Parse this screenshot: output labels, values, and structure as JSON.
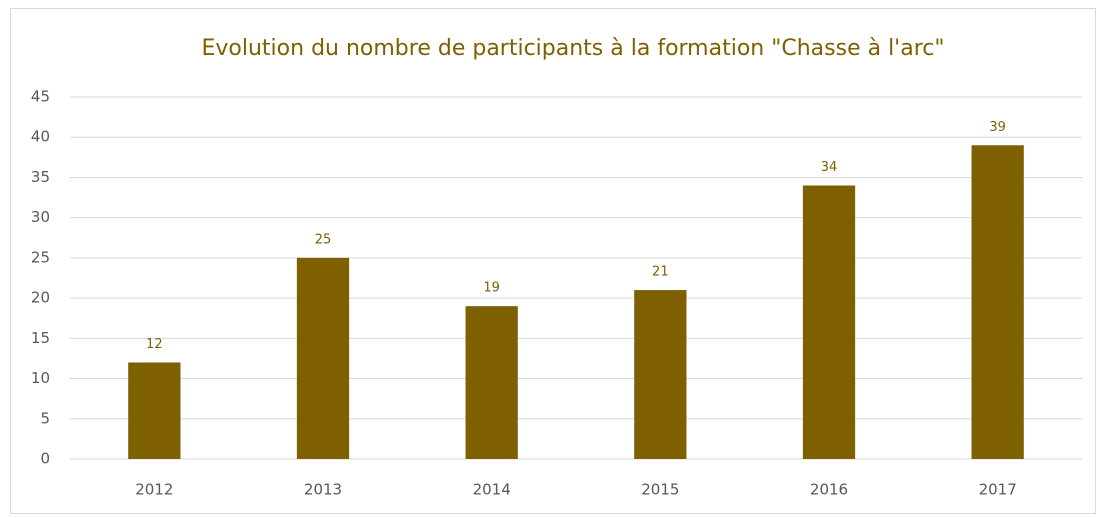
{
  "chart_data": {
    "type": "bar",
    "title": "Evolution du nombre de participants à la formation \"Chasse à l'arc\"",
    "categories": [
      "2012",
      "2013",
      "2014",
      "2015",
      "2016",
      "2017"
    ],
    "values": [
      12,
      25,
      19,
      21,
      34,
      39
    ],
    "color": "#7f6000",
    "data_labels": true,
    "ylim": [
      0,
      45
    ],
    "yticks": [
      0,
      5,
      10,
      15,
      20,
      25,
      30,
      35,
      40,
      45
    ],
    "grid": true
  }
}
